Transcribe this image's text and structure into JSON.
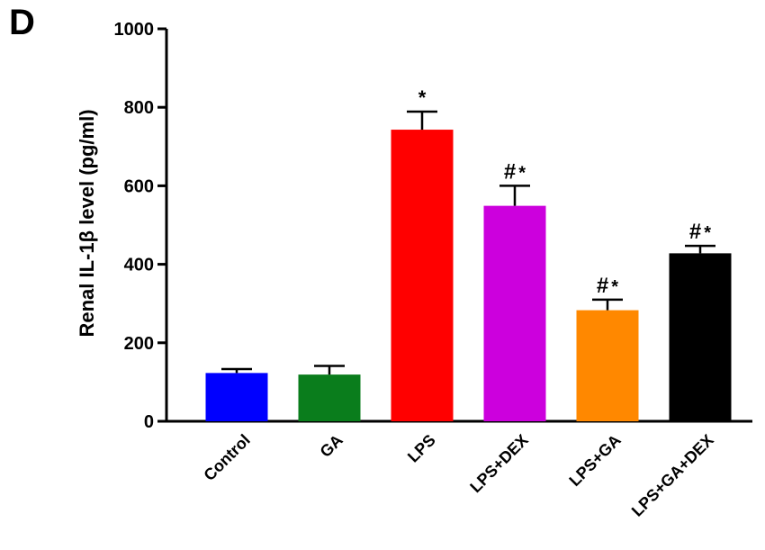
{
  "panel_label": "D",
  "chart_data": {
    "type": "bar",
    "title": "",
    "xlabel": "",
    "ylabel": "Renal IL-1β level (pg/ml)",
    "ylim": [
      0,
      1000
    ],
    "yticks": [
      0,
      200,
      400,
      600,
      800,
      1000
    ],
    "categories": [
      "Control",
      "GA",
      "LPS",
      "LPS+DEX",
      "LPS+GA",
      "LPS+GA+DEX"
    ],
    "values": [
      123,
      119,
      743,
      549,
      283,
      428
    ],
    "error_upper": [
      133,
      141,
      789,
      600,
      310,
      447
    ],
    "annotations": [
      "",
      "",
      "*",
      "#*",
      "#*",
      "#*"
    ],
    "colors": [
      "#0000ff",
      "#0a7d1c",
      "#ff0000",
      "#cc00dd",
      "#ff8800",
      "#000000"
    ],
    "grid": false,
    "legend": "none"
  }
}
